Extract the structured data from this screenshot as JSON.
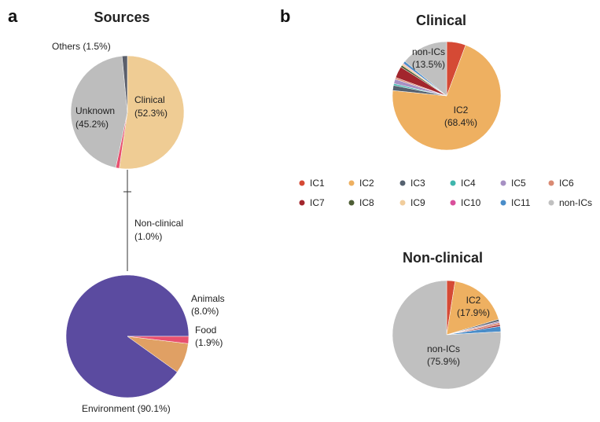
{
  "panels": {
    "a": "a",
    "b": "b"
  },
  "chart_data": [
    {
      "type": "pie",
      "title": "Sources",
      "slices": [
        {
          "name": "Clinical",
          "label": "Clinical",
          "pct_label": "(52.3%)",
          "value": 52.3,
          "color": "#efcc94"
        },
        {
          "name": "Non-clinical",
          "label": "Non-clinical",
          "pct_label": "(1.0%)",
          "value": 1.0,
          "color": "#e8506f"
        },
        {
          "name": "Unknown",
          "label": "Unknown",
          "pct_label": "(45.2%)",
          "value": 45.2,
          "color": "#bdbdbd"
        },
        {
          "name": "Others",
          "label": "Others (1.5%)",
          "value": 1.5,
          "color": "#5b5f6b"
        }
      ]
    },
    {
      "type": "pie",
      "title": "",
      "slices": [
        {
          "name": "Environment",
          "label": "Environment (90.1%)",
          "value": 90.1,
          "color": "#5b4ba0"
        },
        {
          "name": "Animals",
          "label": "Animals",
          "pct_label": "(8.0%)",
          "value": 8.0,
          "color": "#e0a064"
        },
        {
          "name": "Food",
          "label": "Food",
          "pct_label": "(1.9%)",
          "value": 1.9,
          "color": "#e8506f"
        }
      ]
    },
    {
      "type": "pie",
      "title": "Clinical",
      "slices": [
        {
          "name": "IC1",
          "value": 5.5,
          "color": "#d54a35"
        },
        {
          "name": "IC2",
          "label": "IC2",
          "pct_label": "(68.4%)",
          "value": 68.4,
          "color": "#eeb061"
        },
        {
          "name": "IC3",
          "value": 1.5,
          "color": "#55616f"
        },
        {
          "name": "IC4",
          "value": 0.5,
          "color": "#3fb6ad"
        },
        {
          "name": "IC5",
          "value": 1.3,
          "color": "#a690c3"
        },
        {
          "name": "IC6",
          "value": 0.5,
          "color": "#d98a73"
        },
        {
          "name": "IC7",
          "value": 3.3,
          "color": "#a2262d"
        },
        {
          "name": "IC8",
          "value": 0.6,
          "color": "#4e5e36"
        },
        {
          "name": "IC9",
          "value": 0.5,
          "color": "#f1cd9c"
        },
        {
          "name": "IC10",
          "value": 0.2,
          "color": "#d94f9b"
        },
        {
          "name": "IC11",
          "value": 0.7,
          "color": "#4a8dc9"
        },
        {
          "name": "non-ICs",
          "label": "non-ICs",
          "pct_label": "(13.5%)",
          "value": 13.5,
          "color": "#c0c0c0"
        }
      ]
    },
    {
      "type": "pie",
      "title": "Non-clinical",
      "slices": [
        {
          "name": "IC1",
          "value": 2.5,
          "color": "#d54a35"
        },
        {
          "name": "IC2",
          "label": "IC2",
          "pct_label": "(17.9%)",
          "value": 17.9,
          "color": "#eeb061"
        },
        {
          "name": "IC3",
          "value": 0.6,
          "color": "#55616f"
        },
        {
          "name": "IC5",
          "value": 0.4,
          "color": "#a690c3"
        },
        {
          "name": "IC6",
          "value": 0.6,
          "color": "#d98a73"
        },
        {
          "name": "IC7",
          "value": 0.5,
          "color": "#a2262d"
        },
        {
          "name": "IC11",
          "value": 1.6,
          "color": "#4a8dc9"
        },
        {
          "name": "non-ICs",
          "label": "non-ICs",
          "pct_label": "(75.9%)",
          "value": 75.9,
          "color": "#c0c0c0"
        }
      ]
    }
  ],
  "legend": [
    {
      "name": "IC1",
      "color": "#d54a35"
    },
    {
      "name": "IC2",
      "color": "#eeb061"
    },
    {
      "name": "IC3",
      "color": "#55616f"
    },
    {
      "name": "IC4",
      "color": "#3fb6ad"
    },
    {
      "name": "IC5",
      "color": "#a690c3"
    },
    {
      "name": "IC6",
      "color": "#d98a73"
    },
    {
      "name": "IC7",
      "color": "#a2262d"
    },
    {
      "name": "IC8",
      "color": "#4e5e36"
    },
    {
      "name": "IC9",
      "color": "#f1cd9c"
    },
    {
      "name": "IC10",
      "color": "#d94f9b"
    },
    {
      "name": "IC11",
      "color": "#4a8dc9"
    },
    {
      "name": "non-ICs",
      "color": "#c0c0c0"
    }
  ]
}
